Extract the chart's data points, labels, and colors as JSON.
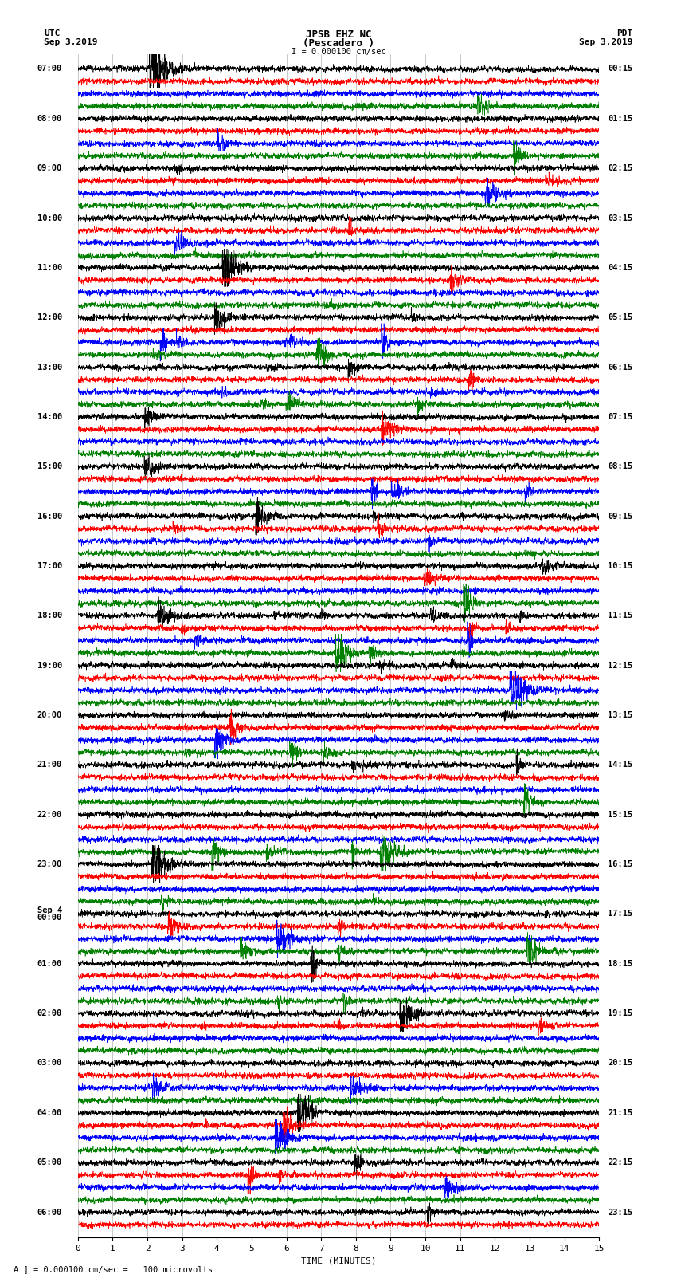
{
  "title_line1": "JPSB EHZ NC",
  "title_line2": "(Pescadero )",
  "scale_label": "I = 0.000100 cm/sec",
  "footer_label": "A ] = 0.000100 cm/sec =   100 microvolts",
  "utc_label": "UTC",
  "utc_date": "Sep 3,2019",
  "pdt_label": "PDT",
  "pdt_date": "Sep 3,2019",
  "xlabel": "TIME (MINUTES)",
  "xlim": [
    0,
    15
  ],
  "xticks": [
    0,
    1,
    2,
    3,
    4,
    5,
    6,
    7,
    8,
    9,
    10,
    11,
    12,
    13,
    14,
    15
  ],
  "bg_color": "#ffffff",
  "trace_color_cycle": [
    "black",
    "red",
    "blue",
    "green"
  ],
  "n_total_traces": 94,
  "left_labels": [
    "07:00",
    "08:00",
    "09:00",
    "10:00",
    "11:00",
    "12:00",
    "13:00",
    "14:00",
    "15:00",
    "16:00",
    "17:00",
    "18:00",
    "19:00",
    "20:00",
    "21:00",
    "22:00",
    "23:00",
    "Sep 4\n00:00",
    "01:00",
    "02:00",
    "03:00",
    "04:00",
    "05:00",
    "06:00"
  ],
  "right_labels": [
    "00:15",
    "01:15",
    "02:15",
    "03:15",
    "04:15",
    "05:15",
    "06:15",
    "07:15",
    "08:15",
    "09:15",
    "10:15",
    "11:15",
    "12:15",
    "13:15",
    "14:15",
    "15:15",
    "16:15",
    "17:15",
    "18:15",
    "19:15",
    "20:15",
    "21:15",
    "22:15",
    "23:15"
  ]
}
